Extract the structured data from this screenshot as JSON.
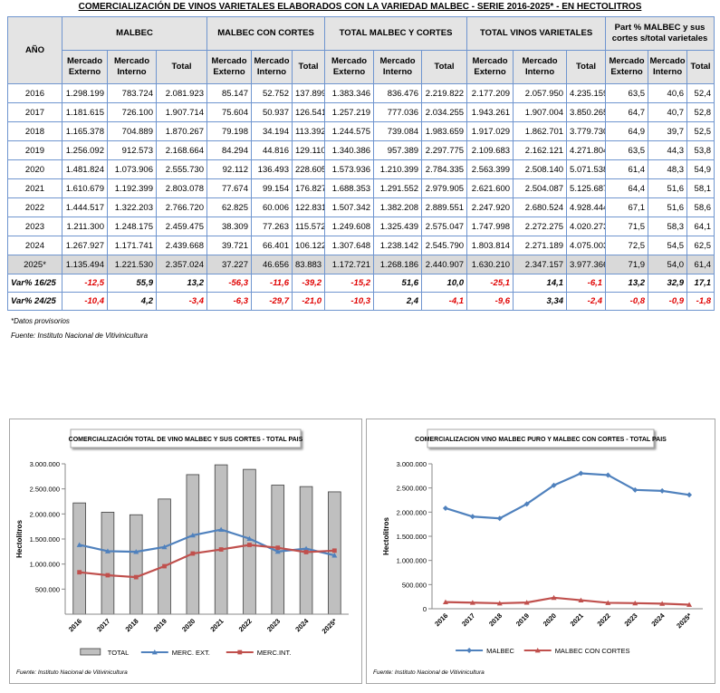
{
  "title": "COMERCIALIZACIÓN DE VINOS VARIETALES ELABORADOS CON LA VARIEDAD MALBEC - SERIE 2016-2025* - EN HECTOLITROS",
  "table": {
    "header_top": [
      "AÑO",
      "MALBEC",
      "MALBEC CON CORTES",
      "TOTAL MALBEC Y CORTES",
      "TOTAL VINOS VARIETALES",
      "Part % MALBEC y sus cortes s/total varietales"
    ],
    "header_sub": [
      "Mercado Externo",
      "Mercado Interno",
      "Total",
      "Mercado Externo",
      "Mercado Interno",
      "Total",
      "Mercado Externo",
      "Mercado Interno",
      "Total",
      "Mercado Externo",
      "Mercado Interno",
      "Total",
      "Mercado Externo",
      "Mercado Interno",
      "Total"
    ],
    "rows": [
      [
        "2016",
        "1.298.199",
        "783.724",
        "2.081.923",
        "85.147",
        "52.752",
        "137.899",
        "1.383.346",
        "836.476",
        "2.219.822",
        "2.177.209",
        "2.057.950",
        "4.235.159",
        "63,5",
        "40,6",
        "52,4"
      ],
      [
        "2017",
        "1.181.615",
        "726.100",
        "1.907.714",
        "75.604",
        "50.937",
        "126.541",
        "1.257.219",
        "777.036",
        "2.034.255",
        "1.943.261",
        "1.907.004",
        "3.850.265",
        "64,7",
        "40,7",
        "52,8"
      ],
      [
        "2018",
        "1.165.378",
        "704.889",
        "1.870.267",
        "79.198",
        "34.194",
        "113.392",
        "1.244.575",
        "739.084",
        "1.983.659",
        "1.917.029",
        "1.862.701",
        "3.779.730",
        "64,9",
        "39,7",
        "52,5"
      ],
      [
        "2019",
        "1.256.092",
        "912.573",
        "2.168.664",
        "84.294",
        "44.816",
        "129.110",
        "1.340.386",
        "957.389",
        "2.297.775",
        "2.109.683",
        "2.162.121",
        "4.271.804",
        "63,5",
        "44,3",
        "53,8"
      ],
      [
        "2020",
        "1.481.824",
        "1.073.906",
        "2.555.730",
        "92.112",
        "136.493",
        "228.605",
        "1.573.936",
        "1.210.399",
        "2.784.335",
        "2.563.399",
        "2.508.140",
        "5.071.538",
        "61,4",
        "48,3",
        "54,9"
      ],
      [
        "2021",
        "1.610.679",
        "1.192.399",
        "2.803.078",
        "77.674",
        "99.154",
        "176.827",
        "1.688.353",
        "1.291.552",
        "2.979.905",
        "2.621.600",
        "2.504.087",
        "5.125.687",
        "64,4",
        "51,6",
        "58,1"
      ],
      [
        "2022",
        "1.444.517",
        "1.322.203",
        "2.766.720",
        "62.825",
        "60.006",
        "122.831",
        "1.507.342",
        "1.382.208",
        "2.889.551",
        "2.247.920",
        "2.680.524",
        "4.928.444",
        "67,1",
        "51,6",
        "58,6"
      ],
      [
        "2023",
        "1.211.300",
        "1.248.175",
        "2.459.475",
        "38.309",
        "77.263",
        "115.572",
        "1.249.608",
        "1.325.439",
        "2.575.047",
        "1.747.998",
        "2.272.275",
        "4.020.273",
        "71,5",
        "58,3",
        "64,1"
      ],
      [
        "2024",
        "1.267.927",
        "1.171.741",
        "2.439.668",
        "39.721",
        "66.401",
        "106.122",
        "1.307.648",
        "1.238.142",
        "2.545.790",
        "1.803.814",
        "2.271.189",
        "4.075.003",
        "72,5",
        "54,5",
        "62,5"
      ],
      [
        "2025*",
        "1.135.494",
        "1.221.530",
        "2.357.024",
        "37.227",
        "46.656",
        "83.883",
        "1.172.721",
        "1.268.186",
        "2.440.907",
        "1.630.210",
        "2.347.157",
        "3.977.366",
        "71,9",
        "54,0",
        "61,4"
      ],
      [
        "Var% 16/25",
        "-12,5",
        "55,9",
        "13,2",
        "-56,3",
        "-11,6",
        "-39,2",
        "-15,2",
        "51,6",
        "10,0",
        "-25,1",
        "14,1",
        "-6,1",
        "13,2",
        "32,9",
        "17,1"
      ],
      [
        "Var% 24/25",
        "-10,4",
        "4,2",
        "-3,4",
        "-6,3",
        "-29,7",
        "-21,0",
        "-10,3",
        "2,4",
        "-4,1",
        "-9,6",
        "3,34",
        "-2,4",
        "-0,8",
        "-0,9",
        "-1,8"
      ]
    ]
  },
  "notes": [
    "*Datos provisorios",
    "Fuente: Instituto Nacional de Vitivinicultura"
  ],
  "chart_data": [
    {
      "type": "combo",
      "title": "COMERCIALIZACIÓN TOTAL DE VINO MALBEC Y SUS CORTES - TOTAL PAIS",
      "y_label": "Hectolitros",
      "source": "Fuente: Instituto Nacional de Vitivinicultura",
      "categories": [
        "2016",
        "2017",
        "2018",
        "2019",
        "2020",
        "2021",
        "2022",
        "2023",
        "2024",
        "2025*"
      ],
      "ylim": [
        0,
        3000000
      ],
      "yticks": [
        {
          "value": 500000,
          "label": "500.000"
        },
        {
          "value": 1000000,
          "label": "1.000.000"
        },
        {
          "value": 1500000,
          "label": "1.500.000"
        },
        {
          "value": 2000000,
          "label": "2.000.000"
        },
        {
          "value": 2500000,
          "label": "2.500.000"
        },
        {
          "value": 3000000,
          "label": "3.000.000"
        }
      ],
      "series": [
        {
          "name": "TOTAL",
          "type": "bar",
          "color": "#bfbfbf",
          "values": [
            2219822,
            2034255,
            1983659,
            2297775,
            2784335,
            2979905,
            2889551,
            2575047,
            2545790,
            2440907
          ]
        },
        {
          "name": "MERC. EXT.",
          "type": "line",
          "marker": "triangle",
          "color": "#4f81bd",
          "values": [
            1383346,
            1257219,
            1244575,
            1340386,
            1573936,
            1688353,
            1507342,
            1249608,
            1307648,
            1172721
          ]
        },
        {
          "name": "MERC.INT.",
          "type": "line",
          "marker": "square",
          "color": "#c0504d",
          "values": [
            836476,
            777036,
            739084,
            957389,
            1210399,
            1291552,
            1382208,
            1325439,
            1238142,
            1268186
          ]
        }
      ]
    },
    {
      "type": "line",
      "title": "COMERCIALIZACION VINO MALBEC PURO Y MALBEC CON CORTES - TOTAL PAIS",
      "y_label": "Hectolitros",
      "source": "Fuente: Instituto Nacional de Vitivinicultura",
      "categories": [
        "2016",
        "2017",
        "2018",
        "2019",
        "2020",
        "2021",
        "2022",
        "2023",
        "2024",
        "2025*"
      ],
      "ylim": [
        0,
        3000000
      ],
      "yticks": [
        0,
        {
          "value": 500000,
          "label": "500.000"
        },
        {
          "value": 1000000,
          "label": "1.000.000"
        },
        {
          "value": 1500000,
          "label": "1.500.000"
        },
        {
          "value": 2000000,
          "label": "2.000.000"
        },
        {
          "value": 2500000,
          "label": "2.500.000"
        },
        {
          "value": 3000000,
          "label": "3.000.000"
        }
      ],
      "series": [
        {
          "name": "MALBEC",
          "type": "line",
          "marker": "diamond",
          "color": "#4f81bd",
          "values": [
            2081923,
            1907714,
            1870267,
            2168664,
            2555730,
            2803078,
            2766720,
            2459475,
            2439668,
            2357024
          ]
        },
        {
          "name": "MALBEC CON CORTES",
          "type": "line",
          "marker": "triangle",
          "color": "#c0504d",
          "values": [
            137899,
            126541,
            113392,
            129110,
            228605,
            176827,
            122831,
            115572,
            106122,
            83883
          ]
        }
      ]
    }
  ]
}
